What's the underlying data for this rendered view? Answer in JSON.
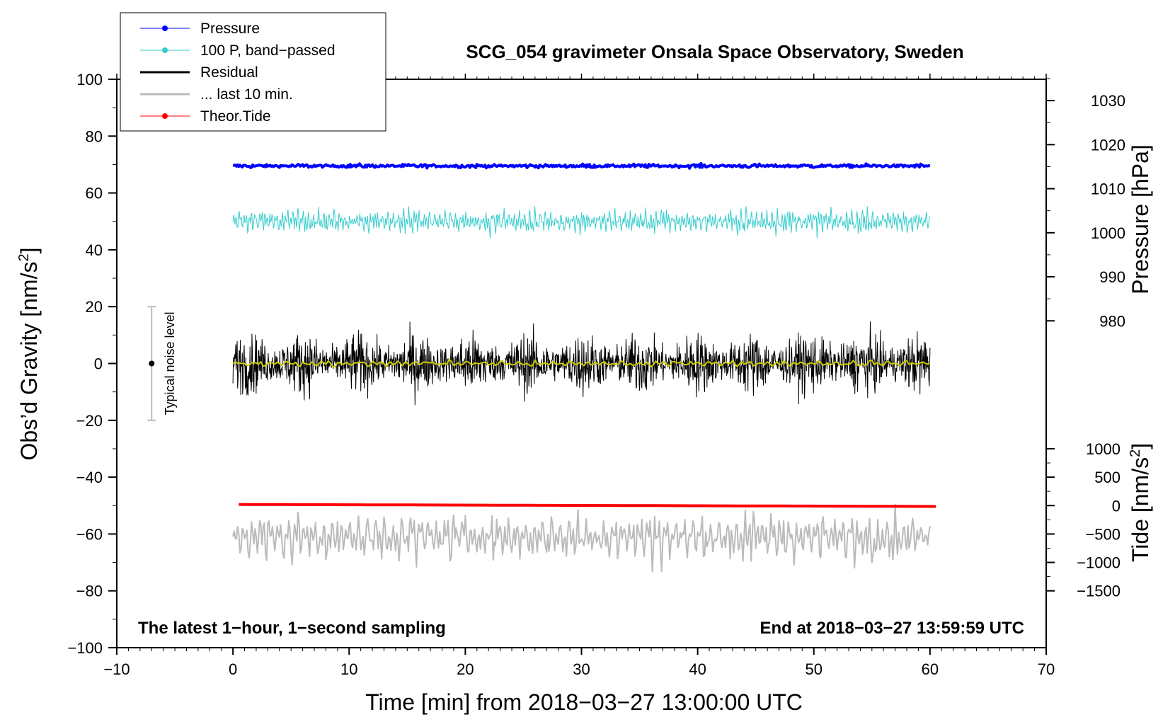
{
  "chart_data": {
    "type": "line",
    "title": "SCG_054 gravimeter Onsala Space Observatory, Sweden",
    "xlabel": "Time [min] from 2018−03−27 13:00:00 UTC",
    "ylabel_main": "Obs’d Gravity [nm/s",
    "ylabel_main_sup": "2",
    "ylabel_main_end": "]",
    "ylabel_pressure": "Pressure [hPa]",
    "ylabel_tide": "Tide [nm/s",
    "ylabel_tide_sup": "2",
    "ylabel_tide_end": "]",
    "xlim": [
      -10,
      70
    ],
    "ylim": [
      -100,
      100
    ],
    "x_ticks": [
      -10,
      0,
      10,
      20,
      30,
      40,
      50,
      60,
      70
    ],
    "x_tick_labels": [
      "−10",
      "0",
      "10",
      "20",
      "30",
      "40",
      "50",
      "60",
      "70"
    ],
    "y_ticks": [
      -100,
      -80,
      -60,
      -40,
      -20,
      0,
      20,
      40,
      60,
      80,
      100
    ],
    "y_tick_labels": [
      "−100",
      "−80",
      "−60",
      "−40",
      "−20",
      "0",
      "20",
      "40",
      "60",
      "80",
      "100"
    ],
    "pressure_axis": {
      "ticks": [
        980,
        990,
        1000,
        1010,
        1020,
        1030
      ],
      "tick_labels": [
        "980",
        "990",
        "1000",
        "1010",
        "1020",
        "1030"
      ],
      "gravity_at_980": 15,
      "gravity_per_hpa": 1.55
    },
    "tide_axis": {
      "ticks": [
        -1500,
        -1000,
        -500,
        0,
        500,
        1000
      ],
      "tick_labels": [
        "−1500",
        "−1000",
        "−500",
        "0",
        "500",
        "1000"
      ],
      "gravity_at_0": -50,
      "gravity_per_unit": 0.02
    },
    "legend": {
      "position": "top-left",
      "entries": [
        {
          "label": "Pressure",
          "color": "#0000ff",
          "marker": true
        },
        {
          "label": "100 P, band−passed",
          "color": "#33cccc",
          "marker": true
        },
        {
          "label": "Residual",
          "color": "#000000",
          "marker": false
        },
        {
          "label": "... last 10 min.",
          "color": "#bbbbbb",
          "marker": false
        },
        {
          "label": "Theor.Tide",
          "color": "#ff0000",
          "marker": true
        }
      ]
    },
    "series": [
      {
        "name": "Pressure",
        "color": "#0000ff",
        "x_range": [
          0,
          60
        ],
        "level_gravity_units": 69.5,
        "noise": 0.4,
        "osc_amp": 0,
        "width": 4
      },
      {
        "name": "100 P, band−passed",
        "color": "#33cccc",
        "x_range": [
          0,
          60
        ],
        "level_gravity_units": 50,
        "noise": 0,
        "osc_amp": 2.5,
        "width": 1
      },
      {
        "name": "Residual",
        "color": "#000000",
        "x_range": [
          0,
          60
        ],
        "level_gravity_units": 0,
        "noise": 6,
        "osc_amp": 0,
        "width": 1
      },
      {
        "name": "Residual smoothed",
        "color": "#cccc00",
        "x_range": [
          0,
          60
        ],
        "level_gravity_units": 0,
        "noise": 0,
        "osc_amp": 0.6,
        "width": 2
      },
      {
        "name": "... last 10 min.",
        "color": "#bbbbbb",
        "x_range": [
          0,
          60
        ],
        "level_gravity_units": -61,
        "noise": 0,
        "osc_amp": 5,
        "width": 2
      },
      {
        "name": "Theor.Tide",
        "color": "#ff0000",
        "x_range": [
          0.5,
          60.5
        ],
        "start_gravity_units": -49.6,
        "end_gravity_units": -50.3,
        "width": 4
      }
    ],
    "annotations": {
      "bottom_left": "The latest 1−hour, 1−second sampling",
      "bottom_right": "End at 2018−03−27 13:59:59 UTC"
    },
    "noise_bar": {
      "x": -7,
      "low": -20,
      "high": 20,
      "center": 0,
      "label": "Typical noise level"
    }
  }
}
